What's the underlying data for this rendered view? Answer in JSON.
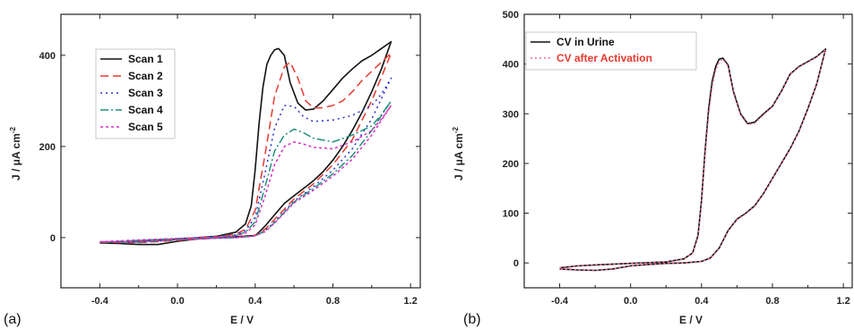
{
  "chart_data": [
    {
      "type": "line",
      "panel_label": "(a)",
      "xlabel": "E / V",
      "ylabel": "J / μA cm",
      "ylabel_sup": "-2",
      "xlim": [
        -0.6,
        1.25
      ],
      "ylim": [
        -110,
        490
      ],
      "xticks": [
        -0.4,
        0.0,
        0.4,
        0.8,
        1.2
      ],
      "xtick_labels": [
        "-0.4",
        "0.0",
        "0.4",
        "0.8",
        "1.2"
      ],
      "yticks": [
        0,
        200,
        400
      ],
      "ytick_labels": [
        "0",
        "200",
        "400"
      ],
      "legend_position": "top-left",
      "series": [
        {
          "name": "Scan 1",
          "color": "#111111",
          "dash": "solid",
          "forward": {
            "x": [
              -0.4,
              -0.2,
              0.0,
              0.2,
              0.3,
              0.35,
              0.38,
              0.4,
              0.42,
              0.44,
              0.46,
              0.48,
              0.5,
              0.52,
              0.55,
              0.58,
              0.62,
              0.66,
              0.7,
              0.75,
              0.8,
              0.85,
              0.9,
              0.95,
              1.0,
              1.05,
              1.1
            ],
            "y": [
              -12,
              -8,
              -3,
              3,
              12,
              30,
              70,
              150,
              250,
              330,
              380,
              400,
              412,
              415,
              400,
              340,
              295,
              280,
              282,
              300,
              325,
              350,
              370,
              388,
              400,
              415,
              430
            ]
          },
          "reverse": {
            "x": [
              1.1,
              1.05,
              1.0,
              0.95,
              0.9,
              0.85,
              0.8,
              0.75,
              0.7,
              0.65,
              0.6,
              0.55,
              0.5,
              0.45,
              0.42,
              0.4,
              0.3,
              0.2,
              0.1,
              0.0,
              -0.1,
              -0.2,
              -0.3,
              -0.4
            ],
            "y": [
              430,
              370,
              320,
              275,
              235,
              200,
              170,
              145,
              125,
              108,
              92,
              75,
              50,
              25,
              12,
              5,
              2,
              0,
              -3,
              -8,
              -15,
              -15,
              -13,
              -12
            ]
          }
        },
        {
          "name": "Scan 2",
          "color": "#e53a2f",
          "dash": "9,5",
          "forward": {
            "x": [
              -0.4,
              -0.2,
              0.0,
              0.2,
              0.3,
              0.35,
              0.4,
              0.45,
              0.5,
              0.55,
              0.58,
              0.62,
              0.66,
              0.7,
              0.75,
              0.8,
              0.85,
              0.9,
              0.95,
              1.0,
              1.05,
              1.1
            ],
            "y": [
              -11,
              -7,
              -3,
              2,
              8,
              18,
              60,
              180,
              310,
              375,
              385,
              350,
              300,
              285,
              285,
              290,
              300,
              320,
              345,
              365,
              385,
              405
            ]
          },
          "reverse": {
            "x": [
              1.1,
              1.0,
              0.9,
              0.8,
              0.7,
              0.6,
              0.5,
              0.45,
              0.4,
              0.3,
              0.2,
              0.0,
              -0.2,
              -0.4
            ],
            "y": [
              405,
              300,
              215,
              160,
              118,
              85,
              40,
              18,
              5,
              1,
              -1,
              -6,
              -11,
              -11
            ]
          }
        },
        {
          "name": "Scan 3",
          "color": "#2a30c9",
          "dash": "2,4",
          "forward": {
            "x": [
              -0.4,
              -0.2,
              0.0,
              0.2,
              0.3,
              0.35,
              0.4,
              0.45,
              0.5,
              0.55,
              0.6,
              0.65,
              0.7,
              0.8,
              0.9,
              1.0,
              1.05,
              1.1
            ],
            "y": [
              -10,
              -6,
              -2,
              2,
              6,
              15,
              45,
              140,
              240,
              290,
              288,
              265,
              255,
              258,
              268,
              290,
              315,
              350
            ]
          },
          "reverse": {
            "x": [
              1.1,
              1.0,
              0.9,
              0.8,
              0.7,
              0.6,
              0.5,
              0.45,
              0.4,
              0.3,
              0.2,
              0.0,
              -0.2,
              -0.4
            ],
            "y": [
              350,
              260,
              195,
              148,
              112,
              80,
              35,
              15,
              4,
              0,
              -1,
              -5,
              -10,
              -10
            ]
          }
        },
        {
          "name": "Scan 4",
          "color": "#1f8f7a",
          "dash": "9,3,2,3",
          "forward": {
            "x": [
              -0.4,
              -0.2,
              0.0,
              0.2,
              0.3,
              0.35,
              0.4,
              0.45,
              0.5,
              0.55,
              0.6,
              0.65,
              0.7,
              0.8,
              0.9,
              1.0,
              1.05,
              1.1
            ],
            "y": [
              -10,
              -6,
              -2,
              1,
              5,
              12,
              35,
              110,
              190,
              225,
              238,
              230,
              218,
              210,
              225,
              245,
              270,
              300
            ]
          },
          "reverse": {
            "x": [
              1.1,
              1.0,
              0.9,
              0.8,
              0.7,
              0.6,
              0.5,
              0.45,
              0.4,
              0.3,
              0.2,
              0.0,
              -0.2,
              -0.4
            ],
            "y": [
              300,
              235,
              180,
              140,
              108,
              78,
              33,
              14,
              4,
              0,
              -1,
              -5,
              -10,
              -10
            ]
          }
        },
        {
          "name": "Scan 5",
          "color": "#d62fc2",
          "dash": "3,3",
          "forward": {
            "x": [
              -0.4,
              -0.2,
              0.0,
              0.2,
              0.3,
              0.35,
              0.4,
              0.45,
              0.5,
              0.55,
              0.6,
              0.65,
              0.7,
              0.8,
              0.9,
              1.0,
              1.05,
              1.1
            ],
            "y": [
              -9,
              -5,
              -2,
              1,
              4,
              10,
              28,
              90,
              160,
              200,
              210,
              205,
              198,
              195,
              210,
              235,
              260,
              290
            ]
          },
          "reverse": {
            "x": [
              1.1,
              1.0,
              0.9,
              0.8,
              0.7,
              0.6,
              0.5,
              0.45,
              0.4,
              0.3,
              0.2,
              0.0,
              -0.2,
              -0.4
            ],
            "y": [
              290,
              225,
              172,
              135,
              104,
              76,
              32,
              13,
              4,
              0,
              -1,
              -5,
              -9,
              -9
            ]
          }
        }
      ]
    },
    {
      "type": "line",
      "panel_label": "(b)",
      "xlabel": "E / V",
      "ylabel": "J / μA cm",
      "ylabel_sup": "-2",
      "xlim": [
        -0.6,
        1.25
      ],
      "ylim": [
        -50,
        500
      ],
      "xticks": [
        -0.4,
        0.0,
        0.4,
        0.8,
        1.2
      ],
      "xtick_labels": [
        "-0.4",
        "0.0",
        "0.4",
        "0.8",
        "1.2"
      ],
      "yticks": [
        0,
        100,
        200,
        300,
        400,
        500
      ],
      "ytick_labels": [
        "0",
        "100",
        "200",
        "300",
        "400",
        "500"
      ],
      "legend_position": "top-left",
      "series": [
        {
          "name": "CV in Urine",
          "color": "#111111",
          "dash": "solid",
          "forward": {
            "x": [
              -0.4,
              -0.3,
              -0.2,
              0.0,
              0.2,
              0.3,
              0.35,
              0.38,
              0.4,
              0.42,
              0.44,
              0.46,
              0.48,
              0.5,
              0.52,
              0.55,
              0.58,
              0.62,
              0.66,
              0.7,
              0.75,
              0.8,
              0.85,
              0.9,
              0.95,
              1.0,
              1.05,
              1.1
            ],
            "y": [
              -10,
              -6,
              -4,
              -1,
              2,
              8,
              20,
              55,
              125,
              225,
              310,
              365,
              395,
              410,
              412,
              398,
              345,
              300,
              280,
              283,
              300,
              315,
              345,
              380,
              395,
              405,
              415,
              430
            ]
          },
          "reverse": {
            "x": [
              1.1,
              1.05,
              1.0,
              0.95,
              0.9,
              0.85,
              0.8,
              0.75,
              0.7,
              0.65,
              0.6,
              0.55,
              0.5,
              0.45,
              0.4,
              0.3,
              0.2,
              0.1,
              0.0,
              -0.1,
              -0.2,
              -0.3,
              -0.4
            ],
            "y": [
              430,
              360,
              310,
              265,
              230,
              200,
              170,
              140,
              115,
              100,
              88,
              65,
              30,
              10,
              3,
              0,
              -1,
              -3,
              -6,
              -12,
              -15,
              -14,
              -12
            ]
          }
        },
        {
          "name": "CV after Activation",
          "color": "#f26a8d",
          "dash": "2,3",
          "forward": {
            "x": [
              -0.4,
              -0.3,
              -0.2,
              0.0,
              0.2,
              0.3,
              0.35,
              0.38,
              0.4,
              0.42,
              0.44,
              0.46,
              0.48,
              0.5,
              0.52,
              0.55,
              0.58,
              0.62,
              0.66,
              0.7,
              0.75,
              0.8,
              0.85,
              0.9,
              0.95,
              1.0,
              1.05,
              1.1
            ],
            "y": [
              -10,
              -6,
              -4,
              -1,
              2,
              8,
              20,
              52,
              120,
              218,
              300,
              355,
              388,
              405,
              410,
              396,
              342,
              298,
              278,
              281,
              298,
              314,
              344,
              379,
              394,
              404,
              414,
              429
            ]
          },
          "reverse": {
            "x": [
              1.1,
              1.05,
              1.0,
              0.95,
              0.9,
              0.85,
              0.8,
              0.75,
              0.7,
              0.65,
              0.6,
              0.55,
              0.5,
              0.45,
              0.4,
              0.3,
              0.2,
              0.1,
              0.0,
              -0.1,
              -0.2,
              -0.3,
              -0.4
            ],
            "y": [
              429,
              359,
              309,
              264,
              229,
              199,
              169,
              139,
              114,
              99,
              87,
              64,
              29,
              9,
              3,
              0,
              -1,
              -3,
              -6,
              -12,
              -15,
              -14,
              -12
            ]
          }
        }
      ]
    }
  ],
  "legend_colors": {
    "chart_a": "#111111",
    "chart_b_first": "#111111",
    "chart_b_second": "#e53a2f"
  }
}
